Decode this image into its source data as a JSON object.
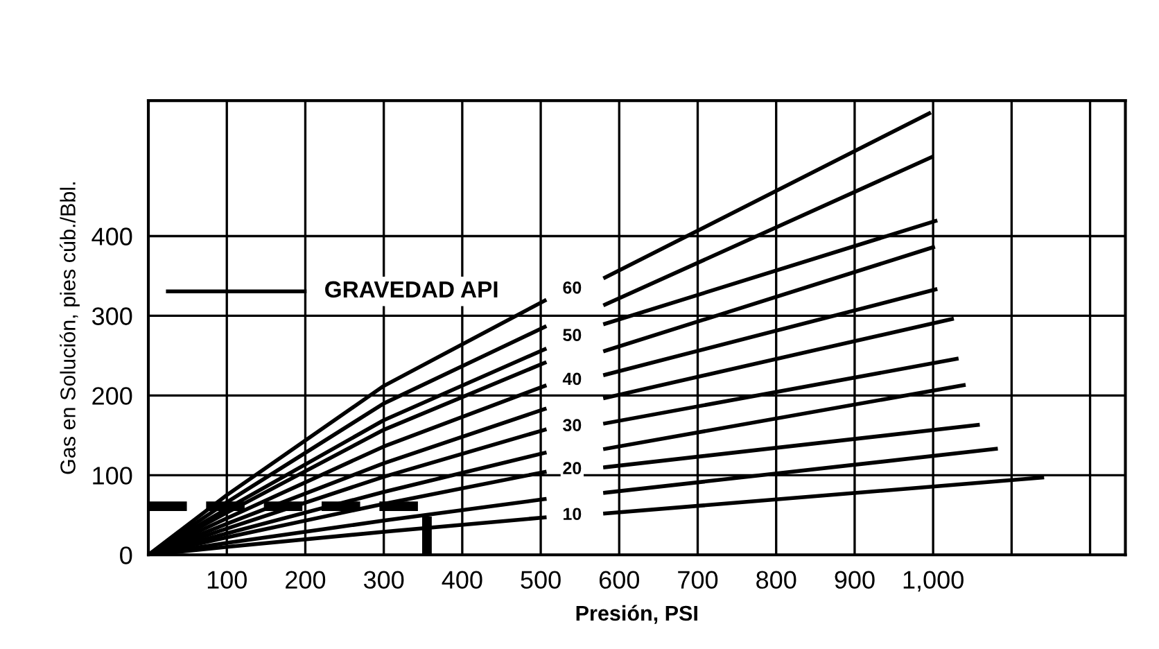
{
  "chart_data": {
    "type": "line",
    "xlabel": "Presión, PSI",
    "ylabel": "Gas en Solución, pies cúb./Bbl.",
    "xlim": [
      0,
      1245
    ],
    "ylim": [
      0,
      570
    ],
    "xticks": [
      100,
      200,
      300,
      400,
      500,
      600,
      700,
      800,
      900,
      {
        "value": 1000,
        "label": "1,000"
      },
      {
        "value": 1100,
        "label": null
      },
      {
        "value": 1200,
        "label": null
      }
    ],
    "yticks": [
      0,
      100,
      200,
      300,
      400
    ],
    "grid": true,
    "legend": false,
    "marker": "none",
    "line_style": "solid",
    "series": [
      {
        "color": "#000000",
        "x": [
          0,
          100,
          300,
          505,
          540,
          582,
          995
        ],
        "values": [
          0,
          75,
          212,
          319,
          null,
          348,
          554
        ]
      },
      {
        "color": "#000000",
        "x": [
          0,
          100,
          300,
          505,
          540,
          582,
          998
        ],
        "values": [
          0,
          66,
          190,
          286,
          null,
          314,
          499
        ]
      },
      {
        "color": "#000000",
        "x": [
          0,
          100,
          300,
          505,
          540,
          582,
          1003
        ],
        "values": [
          0,
          58,
          169,
          258,
          null,
          290,
          419
        ]
      },
      {
        "color": "#000000",
        "x": [
          0,
          100,
          300,
          505,
          540,
          582,
          1000
        ],
        "values": [
          0,
          53,
          157,
          241,
          null,
          256,
          386
        ]
      },
      {
        "color": "#000000",
        "x": [
          0,
          100,
          300,
          505,
          540,
          582,
          1003
        ],
        "values": [
          0,
          46,
          136,
          212,
          null,
          226,
          333
        ]
      },
      {
        "color": "#000000",
        "x": [
          0,
          100,
          300,
          505,
          540,
          582,
          1024
        ],
        "values": [
          0,
          39,
          115,
          183,
          null,
          197,
          296
        ]
      },
      {
        "color": "#000000",
        "x": [
          0,
          100,
          300,
          505,
          540,
          582,
          1030
        ],
        "values": [
          0,
          33,
          98,
          157,
          null,
          165,
          246
        ]
      },
      {
        "color": "#000000",
        "x": [
          0,
          100,
          300,
          505,
          540,
          582,
          1039
        ],
        "values": [
          0,
          27,
          79,
          128,
          null,
          133,
          213
        ]
      },
      {
        "color": "#000000",
        "x": [
          0,
          100,
          300,
          505,
          540,
          582,
          1057
        ],
        "values": [
          0,
          22,
          64,
          104,
          null,
          110,
          163
        ]
      },
      {
        "color": "#000000",
        "x": [
          0,
          100,
          300,
          505,
          540,
          582,
          1080
        ],
        "values": [
          0,
          15,
          43,
          70,
          null,
          78,
          133
        ]
      },
      {
        "color": "#000000",
        "x": [
          0,
          100,
          300,
          505,
          540,
          582,
          1139
        ],
        "values": [
          0,
          10,
          29,
          47,
          null,
          52,
          97
        ]
      },
      {
        "color": "#000000",
        "line_style": "dashed",
        "x": [
          0,
          355,
          355
        ],
        "values": [
          61,
          61,
          0
        ]
      }
    ],
    "annotations": [
      "GRAVEDAD API",
      "60",
      "50",
      "40",
      "30",
      "20",
      "10"
    ]
  }
}
